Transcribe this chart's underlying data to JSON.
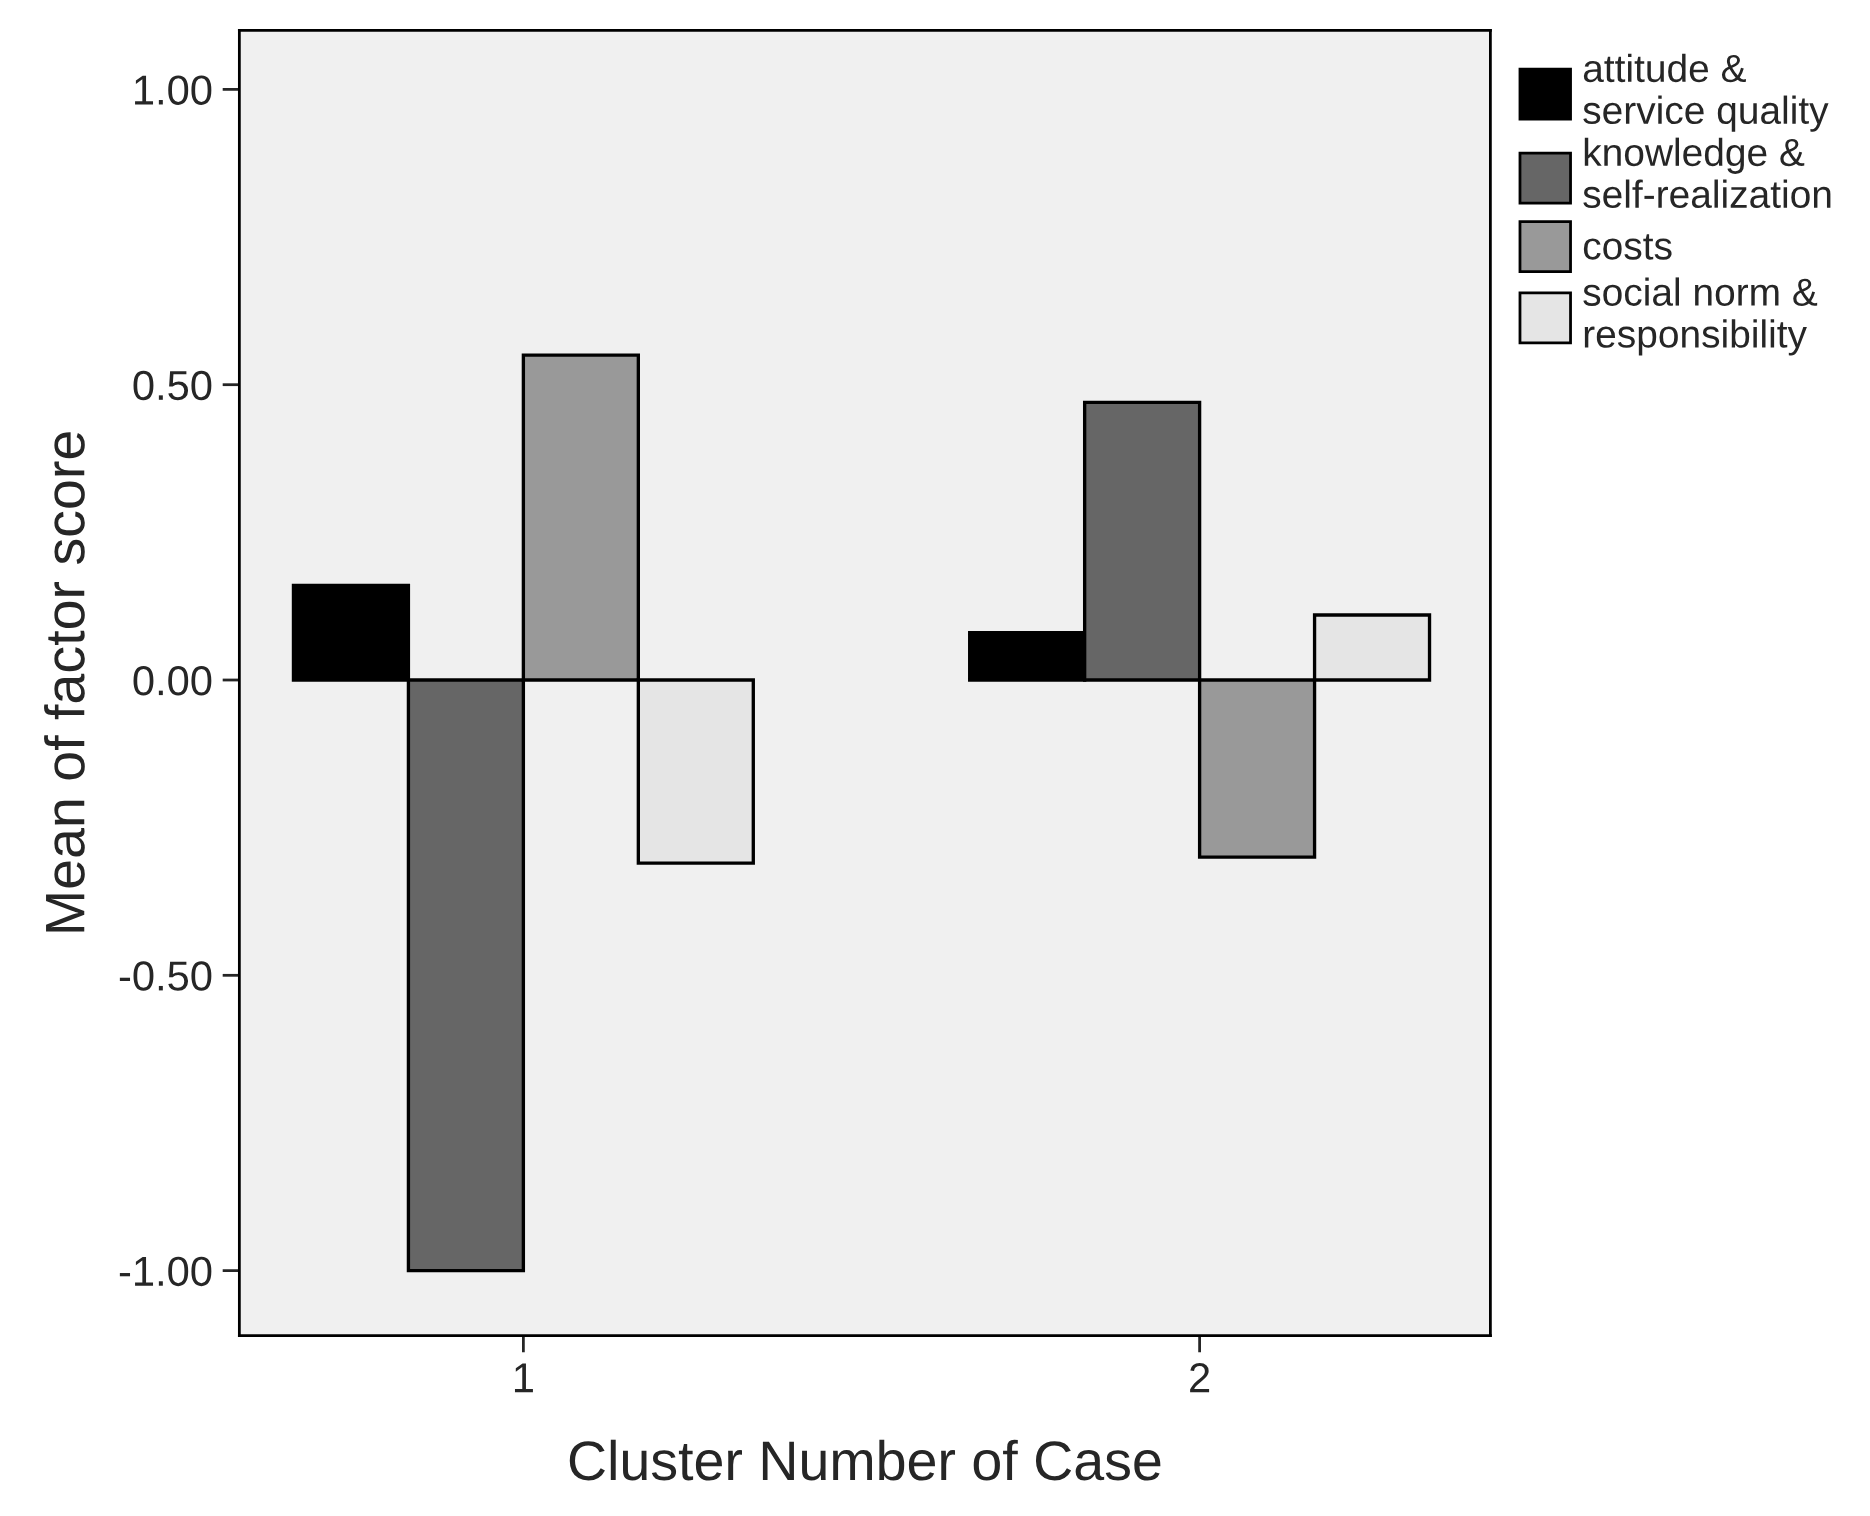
{
  "chart_data": {
    "type": "bar",
    "xlabel": "Cluster Number of Case",
    "ylabel": "Mean of factor score",
    "categories": [
      "1",
      "2"
    ],
    "series": [
      {
        "name": "attitude &\nservice quality",
        "color": "#000000",
        "values": [
          0.16,
          0.08
        ]
      },
      {
        "name": "knowledge &\nself-realization",
        "color": "#666666",
        "values": [
          -1.0,
          0.47
        ]
      },
      {
        "name": "costs",
        "color": "#999999",
        "values": [
          0.55,
          -0.3
        ]
      },
      {
        "name": "social norm &\nresponsibility",
        "color": "#e5e5e5",
        "values": [
          -0.31,
          0.11
        ]
      }
    ],
    "ylim": [
      -1.11,
      1.1
    ],
    "yticks": [
      {
        "value": -1.0,
        "label": "-1.00"
      },
      {
        "value": -0.5,
        "label": "-0.50"
      },
      {
        "value": 0,
        "label": "0.00"
      },
      {
        "value": 0.5,
        "label": "0.50"
      },
      {
        "value": 1.0,
        "label": "1.00"
      }
    ],
    "grid": false,
    "legend": "top right"
  }
}
